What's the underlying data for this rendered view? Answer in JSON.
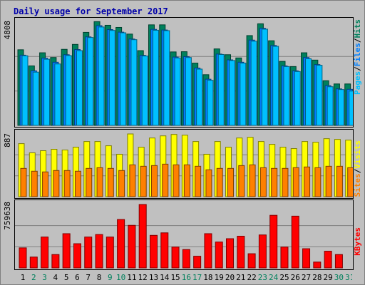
{
  "title": "Daily usage for September 2017",
  "colors": {
    "hits": "#00805c",
    "files": "#0080ff",
    "pages": "#00c0ff",
    "visits": "#ffff00",
    "sites": "#ff8000",
    "kbytes": "#ff0000",
    "weekend_label": "#00805c",
    "weekday_label": "#000000"
  },
  "legends": {
    "hits_panel": [
      {
        "text": "Pages",
        "color": "#00c0ff"
      },
      {
        "text": "/",
        "color": "#000000"
      },
      {
        "text": "Files",
        "color": "#0080ff"
      },
      {
        "text": "/",
        "color": "#000000"
      },
      {
        "text": "Hits",
        "color": "#00805c"
      }
    ],
    "visits_panel": [
      {
        "text": "Sites",
        "color": "#ff8000"
      },
      {
        "text": "/",
        "color": "#000000"
      },
      {
        "text": "Visits",
        "color": "#ffff00"
      }
    ],
    "kb_panel": [
      {
        "text": "KBytes",
        "color": "#ff0000"
      }
    ]
  },
  "chart_data": [
    {
      "type": "bar",
      "title": "Daily usage for September 2017",
      "ymax_label": "4808",
      "ylim": [
        0,
        4808
      ],
      "categories": [
        "1",
        "2",
        "3",
        "4",
        "5",
        "6",
        "7",
        "8",
        "9",
        "10",
        "11",
        "12",
        "13",
        "14",
        "15",
        "16",
        "17",
        "18",
        "19",
        "20",
        "21",
        "22",
        "23",
        "24",
        "25",
        "26",
        "27",
        "28",
        "29",
        "30",
        "31"
      ],
      "weekend_days": [
        "2",
        "3",
        "9",
        "10",
        "16",
        "17",
        "23",
        "24",
        "30",
        "31"
      ],
      "series": [
        {
          "name": "Hits",
          "values": [
            3520,
            2770,
            3380,
            3160,
            3540,
            3770,
            4330,
            4830,
            4660,
            4560,
            4250,
            3480,
            4680,
            4680,
            3420,
            3430,
            2900,
            2360,
            3560,
            3290,
            3140,
            4180,
            4730,
            3940,
            2980,
            2740,
            3380,
            3040,
            2080,
            1930,
            1930
          ]
        },
        {
          "name": "Files",
          "values": [
            3270,
            2540,
            3130,
            2940,
            3290,
            3530,
            4120,
            4640,
            4460,
            4340,
            4020,
            3260,
            4470,
            4440,
            3180,
            3200,
            2670,
            2150,
            3320,
            3050,
            2940,
            3970,
            4520,
            3720,
            2770,
            2540,
            3160,
            2830,
            1850,
            1700,
            1680
          ]
        },
        {
          "name": "Pages",
          "values": [
            3240,
            2480,
            3080,
            2860,
            3250,
            3480,
            4090,
            4580,
            4420,
            4310,
            3990,
            3230,
            4430,
            4410,
            3140,
            3160,
            2620,
            2100,
            3300,
            3020,
            2900,
            3920,
            4480,
            3680,
            2740,
            2510,
            3100,
            2800,
            1800,
            1670,
            1600
          ]
        }
      ]
    },
    {
      "type": "bar",
      "ymax_label": "887",
      "ylim": [
        0,
        887
      ],
      "categories": [
        "1",
        "2",
        "3",
        "4",
        "5",
        "6",
        "7",
        "8",
        "9",
        "10",
        "11",
        "12",
        "13",
        "14",
        "15",
        "16",
        "17",
        "18",
        "19",
        "20",
        "21",
        "22",
        "23",
        "24",
        "25",
        "26",
        "27",
        "28",
        "29",
        "30",
        "31"
      ],
      "series": [
        {
          "name": "Visits",
          "values": [
            750,
            620,
            650,
            670,
            660,
            700,
            780,
            780,
            720,
            600,
            887,
            700,
            830,
            860,
            880,
            870,
            780,
            600,
            780,
            700,
            830,
            840,
            780,
            740,
            700,
            680,
            780,
            770,
            820,
            810,
            800
          ]
        },
        {
          "name": "Sites",
          "values": [
            400,
            360,
            350,
            370,
            370,
            360,
            400,
            410,
            400,
            370,
            450,
            430,
            440,
            460,
            450,
            450,
            430,
            380,
            400,
            400,
            440,
            450,
            410,
            400,
            400,
            410,
            420,
            410,
            430,
            430,
            410
          ]
        }
      ]
    },
    {
      "type": "bar",
      "ymax_label": "759638",
      "ylim": [
        0,
        759638
      ],
      "categories": [
        "1",
        "2",
        "3",
        "4",
        "5",
        "6",
        "7",
        "8",
        "9",
        "10",
        "11",
        "12",
        "13",
        "14",
        "15",
        "16",
        "17",
        "18",
        "19",
        "20",
        "21",
        "22",
        "23",
        "24",
        "25",
        "26",
        "27",
        "28",
        "29",
        "30",
        "31"
      ],
      "series": [
        {
          "name": "KBytes",
          "values": [
            240000,
            130000,
            370000,
            160000,
            410000,
            290000,
            370000,
            400000,
            370000,
            580000,
            510000,
            759638,
            390000,
            420000,
            250000,
            220000,
            140000,
            410000,
            310000,
            350000,
            380000,
            170000,
            395000,
            630000,
            250000,
            620000,
            230000,
            70000,
            200000,
            160000,
            0
          ]
        }
      ]
    }
  ]
}
